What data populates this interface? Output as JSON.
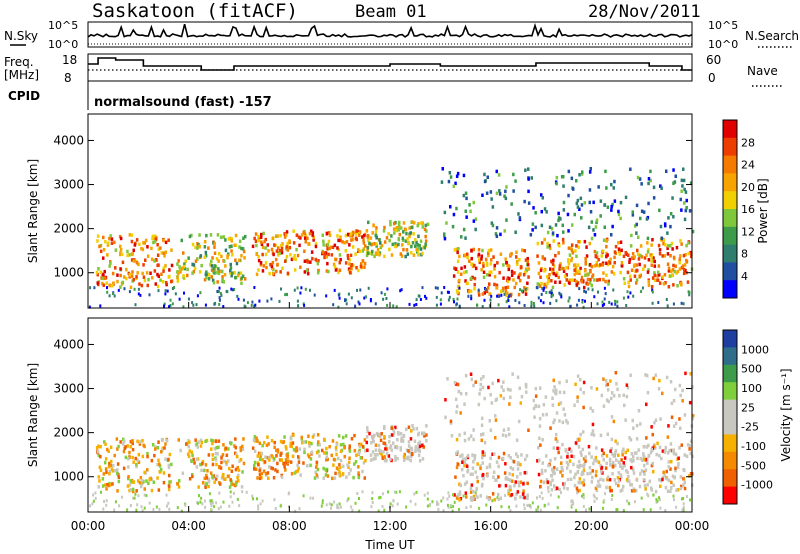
{
  "header": {
    "station": "Saskatoon (fitACF)",
    "beam": "Beam 01",
    "date": "28/Nov/2011"
  },
  "noise_panel": {
    "left_label": "N.Sky",
    "right_label": "N.Search",
    "left_ticks": [
      "10^5",
      "10^0"
    ],
    "right_ticks": [
      "10^5",
      "10^0"
    ]
  },
  "freq_panel": {
    "left_label_line1": "Freq.",
    "left_label_line2": "[MHz]",
    "left_ticks": [
      "18",
      "8"
    ],
    "right_ticks": [
      "60",
      "0"
    ],
    "right_label": "Nave"
  },
  "cpid": {
    "label": "CPID",
    "value": "normalsound (fast) -157"
  },
  "colors": {
    "power": [
      "#0000ff",
      "#1f4fa0",
      "#2e7d6e",
      "#3c9c4a",
      "#7fc83c",
      "#f0d000",
      "#f7a300",
      "#f57b00",
      "#ee3d00",
      "#e00000"
    ],
    "velocity_pos": [
      "#1f3fa0",
      "#2e6e8a",
      "#3c9c4a",
      "#7fcf3c"
    ],
    "velocity_gray": "#c8c8c0",
    "velocity_neg": [
      "#f5b000",
      "#f58a00",
      "#f06000",
      "#ff0000"
    ]
  },
  "chart_data": [
    {
      "type": "heatmap",
      "panel": "power",
      "ylabel": "Slant Range [km]",
      "yticks": [
        "1000",
        "2000",
        "3000",
        "4000"
      ],
      "ylim": [
        200,
        4600
      ],
      "colorbar": {
        "label": "Power [dB]",
        "ticks": [
          "4",
          "8",
          "12",
          "16",
          "20",
          "24",
          "28"
        ],
        "range": [
          0,
          32
        ]
      },
      "echo_regions": [
        {
          "t": [
            0.3,
            3.3
          ],
          "range_km": [
            700,
            1900
          ],
          "level": "high"
        },
        {
          "t": [
            3.5,
            6.2
          ],
          "range_km": [
            800,
            1900
          ],
          "level": "mid"
        },
        {
          "t": [
            6.5,
            11.0
          ],
          "range_km": [
            1000,
            2000
          ],
          "level": "high"
        },
        {
          "t": [
            11.0,
            13.5
          ],
          "range_km": [
            1400,
            2200
          ],
          "level": "mid"
        },
        {
          "t": [
            14.5,
            17.5
          ],
          "range_km": [
            500,
            1600
          ],
          "level": "high"
        },
        {
          "t": [
            17.8,
            24.0
          ],
          "range_km": [
            700,
            1800
          ],
          "level": "high"
        },
        {
          "t": [
            14.0,
            24.0
          ],
          "range_km": [
            1800,
            3400
          ],
          "level": "low"
        }
      ]
    },
    {
      "type": "heatmap",
      "panel": "velocity",
      "xlabel": "Time UT",
      "ylabel": "Slant Range [km]",
      "xticks": [
        "00:00",
        "04:00",
        "08:00",
        "12:00",
        "16:00",
        "20:00",
        "00:00"
      ],
      "xlim": [
        0,
        24
      ],
      "yticks": [
        "1000",
        "2000",
        "3000",
        "4000"
      ],
      "ylim": [
        200,
        4600
      ],
      "colorbar": {
        "label": "Velocity [m s⁻¹]",
        "ticks": [
          "1000",
          "500",
          "100",
          "25",
          "-25",
          "-100",
          "-500",
          "-1000"
        ]
      }
    }
  ]
}
